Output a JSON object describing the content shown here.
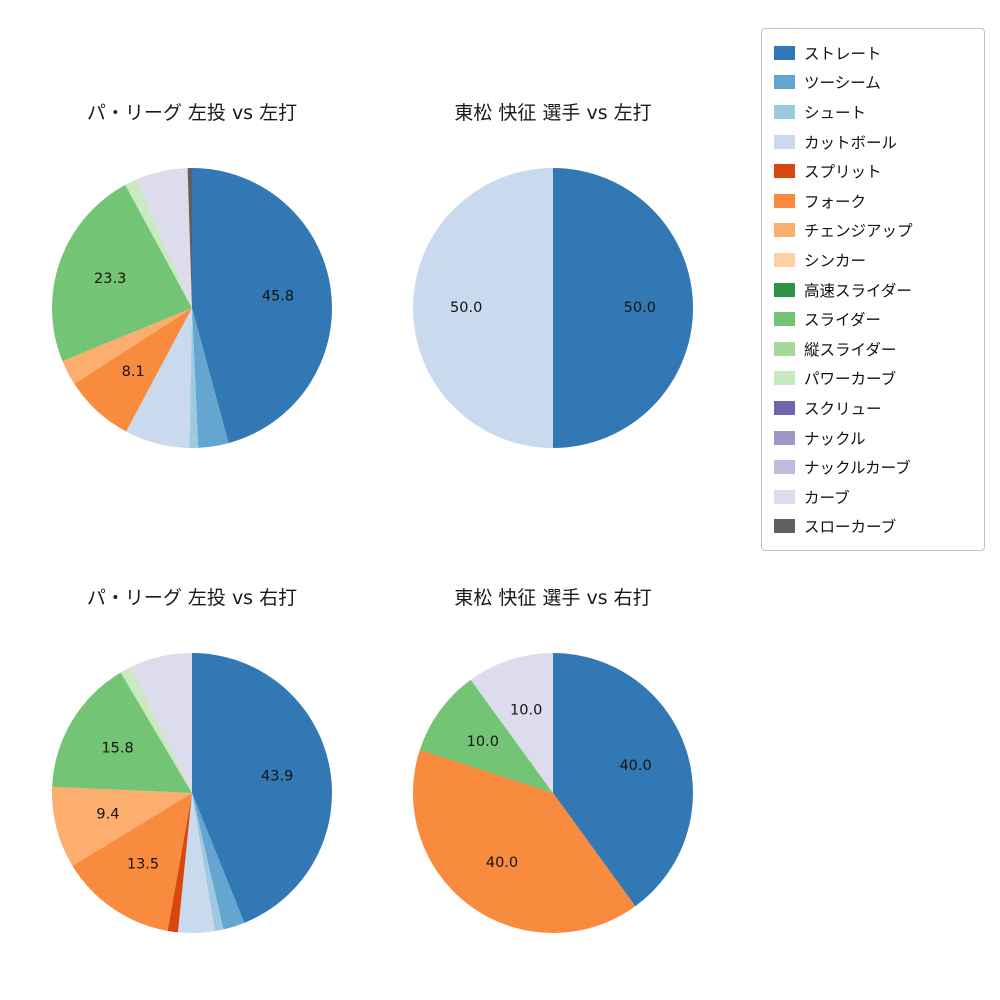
{
  "figure": {
    "background": "#ffffff"
  },
  "label_settings": {
    "min_pct_for_label": 8,
    "decimals": 1,
    "label_radius_ratio": 0.62
  },
  "legend": {
    "items": [
      {
        "key": "straight",
        "label": "ストレート",
        "color": "#3178b4"
      },
      {
        "key": "two-seam",
        "label": "ツーシーム",
        "color": "#64a6cf"
      },
      {
        "key": "shoot",
        "label": "シュート",
        "color": "#9ec9e2"
      },
      {
        "key": "cut-ball",
        "label": "カットボール",
        "color": "#c9daee"
      },
      {
        "key": "split",
        "label": "スプリット",
        "color": "#d8470e"
      },
      {
        "key": "fork",
        "label": "フォーク",
        "color": "#f88b3d"
      },
      {
        "key": "changeup",
        "label": "チェンジアップ",
        "color": "#fcae6e"
      },
      {
        "key": "sinker",
        "label": "シンカー",
        "color": "#fdd1a5"
      },
      {
        "key": "fast-slider",
        "label": "高速スライダー",
        "color": "#2e9245"
      },
      {
        "key": "slider",
        "label": "スライダー",
        "color": "#74c476"
      },
      {
        "key": "vertical-slider",
        "label": "縦スライダー",
        "color": "#a5d99c"
      },
      {
        "key": "power-curve",
        "label": "パワーカーブ",
        "color": "#c9e9c0"
      },
      {
        "key": "screw",
        "label": "スクリュー",
        "color": "#7265ab"
      },
      {
        "key": "knuckle",
        "label": "ナックル",
        "color": "#9e97c8"
      },
      {
        "key": "knuckle-curve",
        "label": "ナックルカーブ",
        "color": "#bcbcdc"
      },
      {
        "key": "curve",
        "label": "カーブ",
        "color": "#dcdcec"
      },
      {
        "key": "slow-curve",
        "label": "スローカーブ",
        "color": "#5f5f5f"
      }
    ]
  },
  "chart_data": [
    {
      "type": "pie",
      "title": "パ・リーグ 左投 vs 左打",
      "start_angle_deg": 90,
      "direction": "clockwise",
      "slices": [
        {
          "key": "straight",
          "value": 45.8
        },
        {
          "key": "two-seam",
          "value": 3.5
        },
        {
          "key": "shoot",
          "value": 1.0
        },
        {
          "key": "cut-ball",
          "value": 7.5
        },
        {
          "key": "fork",
          "value": 8.1
        },
        {
          "key": "changeup",
          "value": 2.9
        },
        {
          "key": "slider",
          "value": 23.3
        },
        {
          "key": "power-curve",
          "value": 1.4
        },
        {
          "key": "curve",
          "value": 6.0
        },
        {
          "key": "slow-curve",
          "value": 0.5
        }
      ]
    },
    {
      "type": "pie",
      "title": "東松 快征 選手 vs 左打",
      "start_angle_deg": 90,
      "direction": "clockwise",
      "slices": [
        {
          "key": "straight",
          "value": 50.0
        },
        {
          "key": "cut-ball",
          "value": 50.0
        }
      ]
    },
    {
      "type": "pie",
      "title": "パ・リーグ 左投 vs 右打",
      "start_angle_deg": 90,
      "direction": "clockwise",
      "slices": [
        {
          "key": "straight",
          "value": 43.9
        },
        {
          "key": "two-seam",
          "value": 2.5
        },
        {
          "key": "shoot",
          "value": 1.0
        },
        {
          "key": "cut-ball",
          "value": 4.2
        },
        {
          "key": "split",
          "value": 1.2
        },
        {
          "key": "fork",
          "value": 13.5
        },
        {
          "key": "changeup",
          "value": 9.4
        },
        {
          "key": "slider",
          "value": 15.8
        },
        {
          "key": "power-curve",
          "value": 1.3
        },
        {
          "key": "curve",
          "value": 7.2
        }
      ]
    },
    {
      "type": "pie",
      "title": "東松 快征 選手 vs 右打",
      "start_angle_deg": 90,
      "direction": "clockwise",
      "slices": [
        {
          "key": "straight",
          "value": 40.0
        },
        {
          "key": "fork",
          "value": 40.0
        },
        {
          "key": "slider",
          "value": 10.0
        },
        {
          "key": "curve",
          "value": 10.0
        }
      ]
    }
  ]
}
